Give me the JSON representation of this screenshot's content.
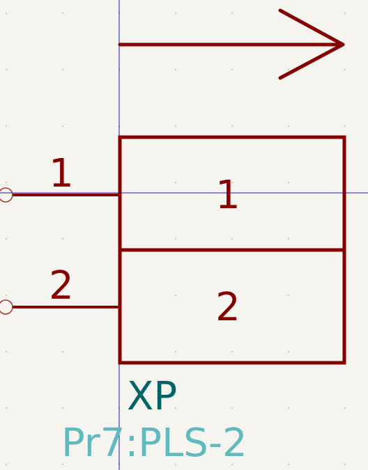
{
  "symbol": {
    "pins": [
      {
        "number": "1",
        "name": "1"
      },
      {
        "number": "2",
        "name": "2"
      }
    ],
    "reference": "XP",
    "value": "Pr7:PLS-2"
  },
  "colors": {
    "background": "#f5f4ef",
    "grid_dot": "#c8c8c8",
    "cursor_crosshair": "#1a1ab0",
    "symbol_body": "#840000",
    "pin_end_marker": "#a83232",
    "reference_text": "#006464",
    "value_text": "#5fb9bd"
  }
}
